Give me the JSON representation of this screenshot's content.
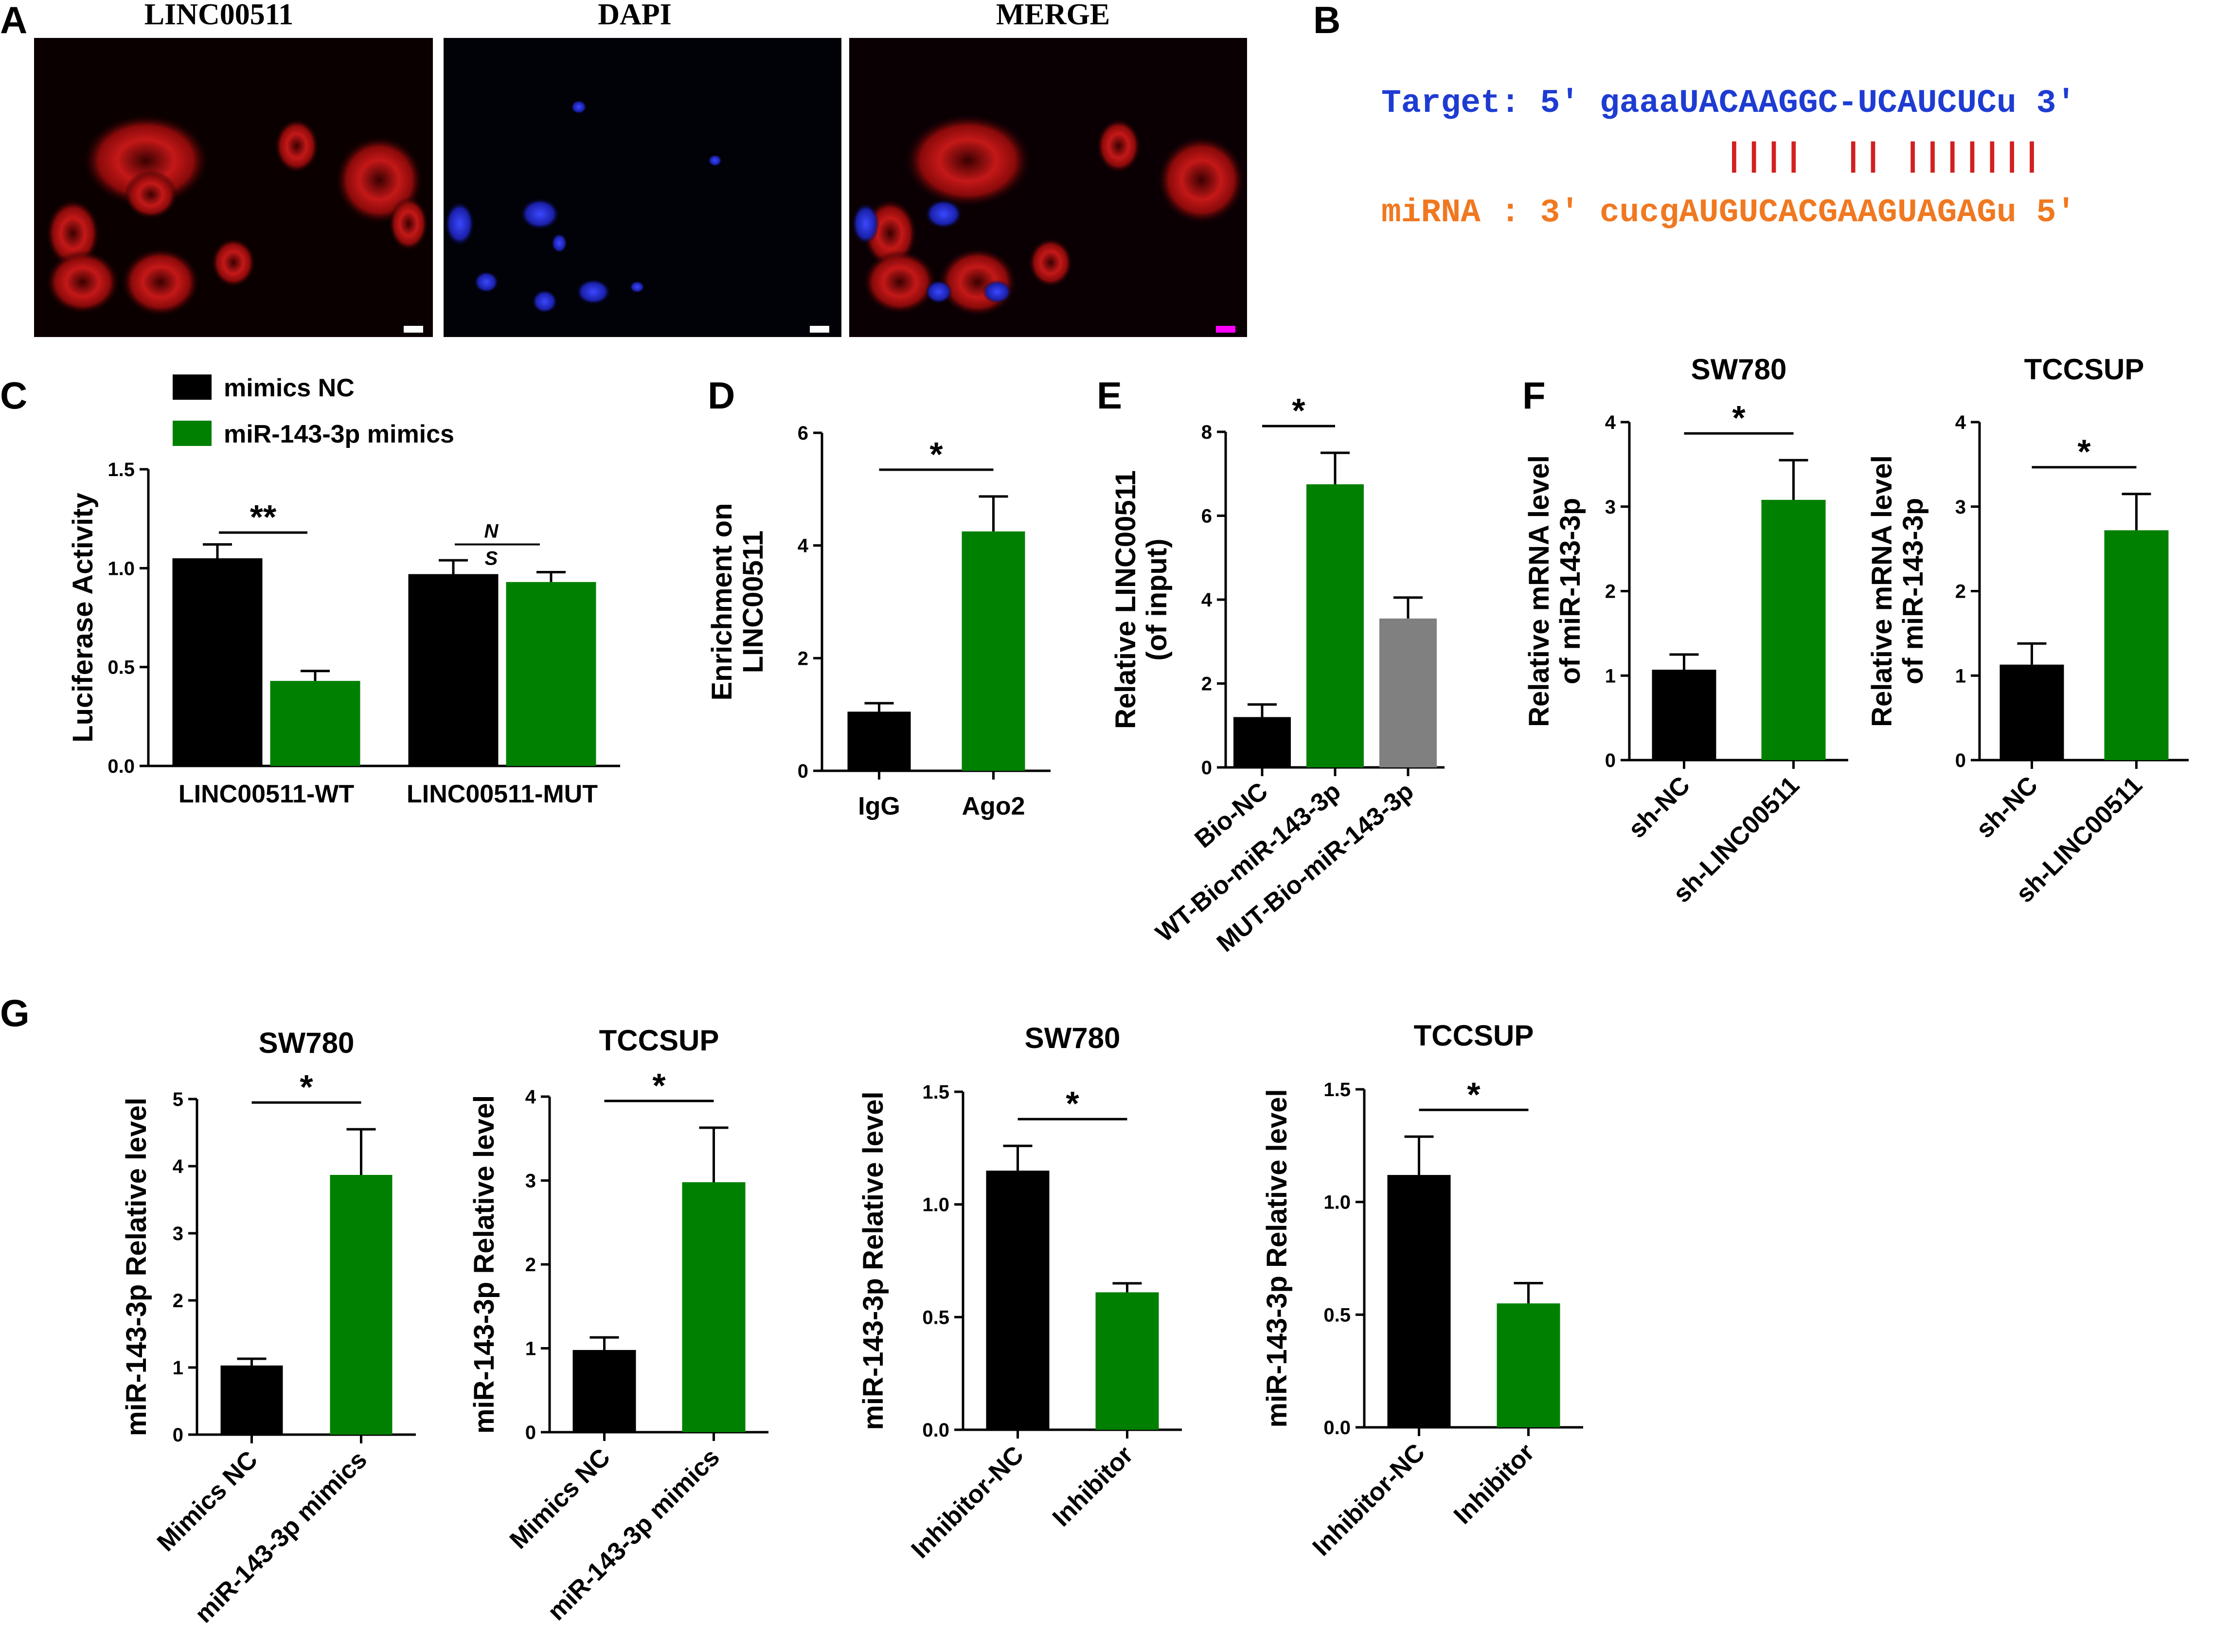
{
  "colors": {
    "black": "#000000",
    "green": "#008000",
    "gray": "#808080",
    "target": "#1e3cd2",
    "mirna": "#f07820",
    "pair": "#d22020"
  },
  "panel_letters": {
    "A": "A",
    "B": "B",
    "C": "C",
    "D": "D",
    "E": "E",
    "F": "F",
    "G": "G"
  },
  "panelA": {
    "titles": [
      "LINC00511",
      "DAPI",
      "MERGE"
    ]
  },
  "panelB": {
    "target": "Target: 5' gaaaUACAAGGC-UCAUCUCu 3'",
    "pairs": "||||  || |||||||",
    "mirna": "miRNA : 3' cucgAUGUCACGAAGUAGAGu 5'"
  },
  "chart_data": [
    {
      "id": "C",
      "type": "bar",
      "ylabel": "Luciferase Activity",
      "ylim": [
        0,
        1.5
      ],
      "yticks": [
        "0.0",
        "0.5",
        "1.0",
        "1.5"
      ],
      "categories": [
        "LINC00511-WT",
        "LINC00511-MUT"
      ],
      "legend": [
        "mimics NC",
        "miR-143-3p mimics"
      ],
      "series": [
        {
          "name": "mimics NC",
          "color": "#000000",
          "values": [
            1.05,
            0.97
          ],
          "errors": [
            0.07,
            0.07
          ]
        },
        {
          "name": "miR-143-3p mimics",
          "color": "#008000",
          "values": [
            0.43,
            0.93
          ],
          "errors": [
            0.05,
            0.05
          ]
        }
      ],
      "annotations": [
        "**",
        "N",
        "S"
      ]
    },
    {
      "id": "D",
      "type": "bar",
      "ylabel": "Enrichment on LINC00511",
      "ylim": [
        0,
        6
      ],
      "yticks": [
        "0",
        "2",
        "4",
        "6"
      ],
      "categories": [
        "IgG",
        "Ago2"
      ],
      "values": [
        1.05,
        4.25
      ],
      "errors": [
        0.15,
        0.62
      ],
      "colors": [
        "#000000",
        "#008000"
      ],
      "annotations": [
        "*"
      ]
    },
    {
      "id": "E",
      "type": "bar",
      "ylabel": "Relative LINC00511 (of input)",
      "ylim": [
        0,
        8
      ],
      "yticks": [
        "0",
        "2",
        "4",
        "6",
        "8"
      ],
      "categories": [
        "Bio-NC",
        "WT-Bio-miR-143-3p",
        "MUT-Bio-miR-143-3p"
      ],
      "values": [
        1.2,
        6.75,
        3.55
      ],
      "errors": [
        0.3,
        0.75,
        0.5
      ],
      "colors": [
        "#000000",
        "#008000",
        "#808080"
      ],
      "annotations": [
        "*"
      ]
    },
    {
      "id": "F1",
      "type": "bar",
      "title": "SW780",
      "ylabel": "Relative mRNA level of miR-143-3p",
      "ylim": [
        0,
        4
      ],
      "yticks": [
        "0",
        "1",
        "2",
        "3",
        "4"
      ],
      "categories": [
        "sh-NC",
        "sh-LINC00511"
      ],
      "values": [
        1.07,
        3.08
      ],
      "errors": [
        0.18,
        0.47
      ],
      "colors": [
        "#000000",
        "#008000"
      ],
      "annotations": [
        "*"
      ]
    },
    {
      "id": "F2",
      "type": "bar",
      "title": "TCCSUP",
      "ylabel": "Relative mRNA level of miR-143-3p",
      "ylim": [
        0,
        4
      ],
      "yticks": [
        "0",
        "1",
        "2",
        "3",
        "4"
      ],
      "categories": [
        "sh-NC",
        "sh-LINC00511"
      ],
      "values": [
        1.13,
        2.72
      ],
      "errors": [
        0.25,
        0.43
      ],
      "colors": [
        "#000000",
        "#008000"
      ],
      "annotations": [
        "*"
      ]
    },
    {
      "id": "G1",
      "type": "bar",
      "title": "SW780",
      "ylabel": "miR-143-3p Relative level",
      "ylim": [
        0,
        5
      ],
      "yticks": [
        "0",
        "1",
        "2",
        "3",
        "4",
        "5"
      ],
      "categories": [
        "Mimics NC",
        "miR-143-3p mimics"
      ],
      "values": [
        1.03,
        3.87
      ],
      "errors": [
        0.1,
        0.68
      ],
      "colors": [
        "#000000",
        "#008000"
      ],
      "annotations": [
        "*"
      ]
    },
    {
      "id": "G2",
      "type": "bar",
      "title": "TCCSUP",
      "ylabel": "miR-143-3p Relative level",
      "ylim": [
        0,
        4
      ],
      "yticks": [
        "0",
        "1",
        "2",
        "3",
        "4"
      ],
      "categories": [
        "Mimics NC",
        "miR-143-3p mimics"
      ],
      "values": [
        0.98,
        2.98
      ],
      "errors": [
        0.15,
        0.65
      ],
      "colors": [
        "#000000",
        "#008000"
      ],
      "annotations": [
        "*"
      ]
    },
    {
      "id": "G3",
      "type": "bar",
      "title": "SW780",
      "ylabel": "miR-143-3p Relative level",
      "ylim": [
        0,
        1.5
      ],
      "yticks": [
        "0.0",
        "0.5",
        "1.0",
        "1.5"
      ],
      "categories": [
        "Inhibitor-NC",
        "Inhibitor"
      ],
      "values": [
        1.15,
        0.61
      ],
      "errors": [
        0.11,
        0.04
      ],
      "colors": [
        "#000000",
        "#008000"
      ],
      "annotations": [
        "*"
      ]
    },
    {
      "id": "G4",
      "type": "bar",
      "title": "TCCSUP",
      "ylabel": "miR-143-3p Relative level",
      "ylim": [
        0,
        1.5
      ],
      "yticks": [
        "0.0",
        "0.5",
        "1.0",
        "1.5"
      ],
      "categories": [
        "Inhibitor-NC",
        "Inhibitor"
      ],
      "values": [
        1.12,
        0.55
      ],
      "errors": [
        0.17,
        0.09
      ],
      "colors": [
        "#000000",
        "#008000"
      ],
      "annotations": [
        "*"
      ]
    }
  ]
}
